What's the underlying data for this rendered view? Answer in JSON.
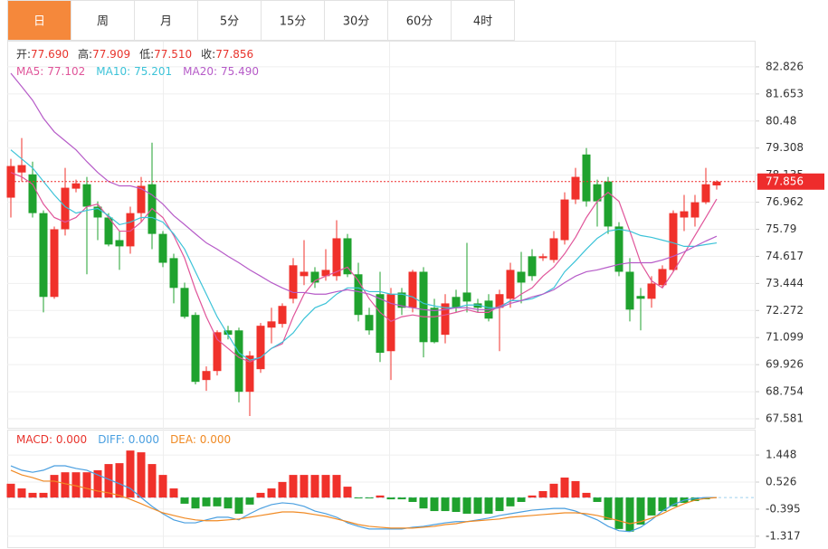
{
  "tabs": {
    "items": [
      "日",
      "周",
      "月",
      "5分",
      "15分",
      "30分",
      "60分",
      "4时"
    ],
    "active": 0,
    "active_color": "#f5883b"
  },
  "chart_data": [
    {
      "type": "candlestick",
      "info_labels": [
        "开:",
        "高:",
        "低:",
        "收:"
      ],
      "info_value_labels": [
        "77.690",
        "77.909",
        "77.510",
        "77.856"
      ],
      "info_value_color": "#e8332c",
      "up_color": "#f0312b",
      "down_color": "#1fa22e",
      "candles": {
        "open": [
          77.16,
          78.25,
          78.17,
          76.49,
          72.86,
          75.79,
          77.55,
          77.74,
          76.77,
          76.3,
          75.32,
          75.05,
          76.49,
          77.74,
          75.59,
          74.54,
          73.25,
          72.08,
          69.26,
          69.65,
          71.41,
          71.41,
          68.75,
          69.73,
          71.53,
          71.69,
          72.78,
          73.76,
          73.95,
          73.76,
          73.76,
          75.4,
          73.84,
          72.08,
          72.98,
          70.51,
          73.05,
          72.39,
          73.95,
          72.39,
          71.22,
          72.86,
          73.05,
          72.58,
          72.7,
          72.39,
          72.78,
          73.95,
          74.62,
          74.54,
          74.46,
          75.32,
          77.08,
          79.03,
          77.74,
          77.86,
          75.91,
          73.95,
          72.9,
          72.78,
          73.37,
          74.03,
          76.3,
          76.3,
          76.96,
          77.69
        ],
        "close": [
          78.53,
          78.57,
          76.49,
          72.86,
          75.79,
          77.59,
          77.78,
          76.77,
          76.3,
          75.13,
          75.05,
          76.49,
          77.67,
          75.59,
          74.34,
          73.25,
          72.0,
          69.18,
          69.65,
          71.33,
          71.22,
          68.75,
          70.32,
          71.61,
          71.8,
          72.47,
          74.23,
          73.95,
          73.48,
          74.03,
          75.4,
          73.84,
          72.08,
          71.41,
          70.44,
          72.98,
          72.39,
          73.95,
          70.9,
          70.9,
          72.58,
          72.39,
          72.66,
          72.39,
          71.92,
          72.98,
          74.03,
          73.48,
          73.76,
          74.62,
          75.4,
          77.08,
          78.06,
          77.0,
          77.0,
          75.91,
          73.95,
          72.31,
          72.78,
          73.44,
          74.07,
          76.49,
          76.57,
          76.96,
          77.74,
          77.856
        ],
        "high": [
          78.84,
          79.74,
          78.72,
          76.61,
          75.91,
          78.45,
          77.94,
          78.06,
          77.0,
          76.49,
          75.71,
          76.77,
          78.06,
          79.54,
          75.71,
          74.73,
          73.48,
          72.19,
          69.85,
          71.41,
          71.61,
          71.53,
          70.51,
          71.73,
          72.39,
          72.58,
          74.54,
          75.32,
          74.15,
          74.93,
          76.18,
          75.59,
          74.34,
          72.39,
          73.95,
          73.25,
          73.25,
          74.03,
          74.15,
          72.78,
          72.98,
          73.17,
          75.2,
          72.78,
          72.98,
          73.17,
          74.34,
          74.81,
          74.93,
          74.73,
          75.71,
          77.39,
          78.45,
          79.31,
          77.94,
          78.06,
          76.1,
          74.54,
          73.25,
          73.76,
          74.23,
          76.61,
          77.28,
          77.28,
          78.45,
          77.909
        ],
        "low": [
          76.3,
          77.86,
          76.3,
          72.19,
          72.78,
          75.52,
          77.39,
          73.84,
          75.32,
          75.05,
          74.03,
          74.73,
          76.1,
          74.93,
          74.15,
          72.58,
          71.92,
          69.07,
          68.79,
          69.46,
          71.02,
          68.29,
          67.7,
          69.57,
          70.85,
          71.53,
          72.58,
          73.37,
          73.25,
          73.56,
          73.56,
          73.72,
          71.8,
          71.22,
          70.04,
          69.26,
          72.08,
          72.19,
          70.24,
          70.85,
          70.85,
          72.19,
          72.19,
          72.19,
          71.8,
          70.51,
          72.39,
          72.58,
          73.56,
          74.42,
          74.34,
          75.13,
          76.88,
          76.77,
          75.91,
          75.59,
          73.76,
          71.8,
          71.41,
          72.39,
          73.25,
          73.95,
          75.71,
          75.91,
          76.88,
          77.51
        ]
      },
      "series": [
        {
          "name": "MA5:",
          "legend_label": "77.102",
          "color": "#e0559a",
          "values": [
            78.25,
            78.06,
            77.74,
            76.88,
            76.3,
            76.1,
            76.3,
            76.77,
            76.88,
            76.3,
            75.71,
            75.71,
            76.1,
            76.69,
            76.3,
            75.52,
            74.54,
            73.17,
            72.0,
            71.02,
            70.63,
            70.24,
            70.04,
            70.24,
            70.63,
            70.83,
            72.0,
            72.98,
            73.56,
            73.76,
            73.95,
            74.15,
            73.56,
            72.78,
            72.19,
            71.8,
            72.0,
            72.08,
            72.0,
            72.0,
            72.08,
            72.19,
            72.31,
            72.19,
            72.19,
            72.47,
            72.66,
            72.98,
            73.25,
            73.76,
            74.15,
            74.73,
            75.44,
            76.3,
            77.0,
            77.39,
            77.0,
            75.71,
            74.34,
            73.56,
            73.25,
            73.95,
            74.73,
            75.52,
            76.3,
            77.102
          ]
        },
        {
          "name": "MA10:",
          "legend_label": "75.201",
          "color": "#3cc3d8",
          "values": [
            79.23,
            78.84,
            78.45,
            77.86,
            77.28,
            76.77,
            76.49,
            76.61,
            76.69,
            76.38,
            75.99,
            76.1,
            76.3,
            76.3,
            76.1,
            75.59,
            74.93,
            73.95,
            72.98,
            72.0,
            71.22,
            70.44,
            70.12,
            70.24,
            70.63,
            70.9,
            71.3,
            71.92,
            72.39,
            72.58,
            72.98,
            73.25,
            73.25,
            73.09,
            73.09,
            72.98,
            72.98,
            72.86,
            72.58,
            72.47,
            72.39,
            72.39,
            72.51,
            72.51,
            72.39,
            72.39,
            72.7,
            72.7,
            72.78,
            72.98,
            73.25,
            73.95,
            74.42,
            74.93,
            75.4,
            75.71,
            75.79,
            75.71,
            75.52,
            75.44,
            75.32,
            75.2,
            75.05,
            75.05,
            75.13,
            75.201
          ]
        },
        {
          "name": "MA20:",
          "legend_label": "75.490",
          "color": "#b65bc8",
          "values": [
            82.55,
            81.97,
            81.38,
            80.6,
            80.01,
            79.62,
            79.23,
            78.72,
            78.25,
            77.86,
            77.67,
            77.67,
            77.55,
            77.28,
            76.88,
            76.38,
            75.99,
            75.59,
            75.2,
            74.93,
            74.62,
            74.34,
            74.03,
            73.76,
            73.48,
            73.25,
            73.05,
            73.05,
            72.98,
            72.98,
            73.09,
            73.17,
            73.09,
            72.98,
            72.78,
            72.58,
            72.47,
            72.39,
            72.31,
            72.27,
            72.31,
            72.39,
            72.39,
            72.31,
            72.31,
            72.39,
            72.58,
            72.7,
            72.86,
            72.98,
            73.17,
            73.48,
            73.76,
            73.95,
            74.03,
            74.15,
            74.27,
            74.34,
            74.34,
            74.34,
            74.46,
            74.62,
            74.81,
            75.05,
            75.28,
            75.49
          ]
        }
      ],
      "ylim": [
        67.19,
        83.92
      ],
      "yticks": [
        82.826,
        81.653,
        80.48,
        79.308,
        78.135,
        76.962,
        75.79,
        74.617,
        73.444,
        72.272,
        71.099,
        69.926,
        68.754,
        67.581
      ],
      "grid": true,
      "last_price_color": "#ee2c2c"
    },
    {
      "type": "macd",
      "up_color": "#f0312b",
      "down_color": "#1fa22e",
      "bars": {
        "name": "MACD: 0.000",
        "color": "#e8332c",
        "values": [
          0.47,
          0.31,
          0.16,
          0.16,
          0.77,
          0.86,
          0.86,
          0.86,
          0.93,
          1.14,
          1.17,
          1.6,
          1.54,
          1.14,
          0.77,
          0.31,
          -0.21,
          -0.37,
          -0.3,
          -0.3,
          -0.37,
          -0.55,
          -0.24,
          0.16,
          0.31,
          0.53,
          0.77,
          0.77,
          0.77,
          0.77,
          0.77,
          0.37,
          -0.03,
          -0.03,
          0.07,
          -0.06,
          -0.06,
          -0.15,
          -0.37,
          -0.46,
          -0.46,
          -0.49,
          -0.55,
          -0.55,
          -0.55,
          -0.46,
          -0.3,
          -0.15,
          0.07,
          0.22,
          0.47,
          0.68,
          0.56,
          0.16,
          -0.15,
          -0.76,
          -1.07,
          -1.16,
          -0.92,
          -0.61,
          -0.46,
          -0.3,
          -0.18,
          -0.12,
          -0.06,
          0.0
        ]
      },
      "series": [
        {
          "name": "DIFF: 0.000",
          "color": "#4a9fe0",
          "values": [
            1.08,
            0.93,
            0.86,
            0.93,
            1.08,
            1.08,
            0.99,
            0.93,
            0.77,
            0.62,
            0.47,
            0.31,
            0.0,
            -0.3,
            -0.55,
            -0.76,
            -0.86,
            -0.86,
            -0.76,
            -0.67,
            -0.67,
            -0.76,
            -0.55,
            -0.37,
            -0.24,
            -0.18,
            -0.21,
            -0.3,
            -0.46,
            -0.55,
            -0.67,
            -0.86,
            -0.98,
            -1.07,
            -1.07,
            -1.07,
            -1.07,
            -1.01,
            -0.98,
            -0.92,
            -0.86,
            -0.82,
            -0.82,
            -0.76,
            -0.7,
            -0.61,
            -0.55,
            -0.49,
            -0.43,
            -0.4,
            -0.37,
            -0.37,
            -0.46,
            -0.61,
            -0.76,
            -0.98,
            -1.13,
            -1.16,
            -1.01,
            -0.76,
            -0.46,
            -0.24,
            -0.09,
            -0.03,
            0.0,
            0.0
          ]
        },
        {
          "name": "DEA: 0.000",
          "color": "#f08a24",
          "values": [
            0.93,
            0.77,
            0.68,
            0.56,
            0.56,
            0.47,
            0.4,
            0.31,
            0.22,
            0.16,
            0.07,
            -0.06,
            -0.21,
            -0.37,
            -0.52,
            -0.61,
            -0.7,
            -0.76,
            -0.79,
            -0.79,
            -0.76,
            -0.73,
            -0.67,
            -0.61,
            -0.55,
            -0.49,
            -0.49,
            -0.52,
            -0.58,
            -0.64,
            -0.73,
            -0.82,
            -0.92,
            -0.98,
            -1.01,
            -1.04,
            -1.04,
            -1.04,
            -1.01,
            -0.98,
            -0.92,
            -0.89,
            -0.82,
            -0.79,
            -0.76,
            -0.73,
            -0.67,
            -0.64,
            -0.61,
            -0.58,
            -0.55,
            -0.52,
            -0.52,
            -0.55,
            -0.61,
            -0.7,
            -0.79,
            -0.89,
            -0.82,
            -0.7,
            -0.55,
            -0.37,
            -0.21,
            -0.09,
            -0.03,
            0.0
          ]
        }
      ],
      "ylim": [
        -1.69,
        2.22
      ],
      "yticks": [
        1.448,
        0.526,
        -0.395,
        -1.317
      ],
      "grid": true
    }
  ]
}
